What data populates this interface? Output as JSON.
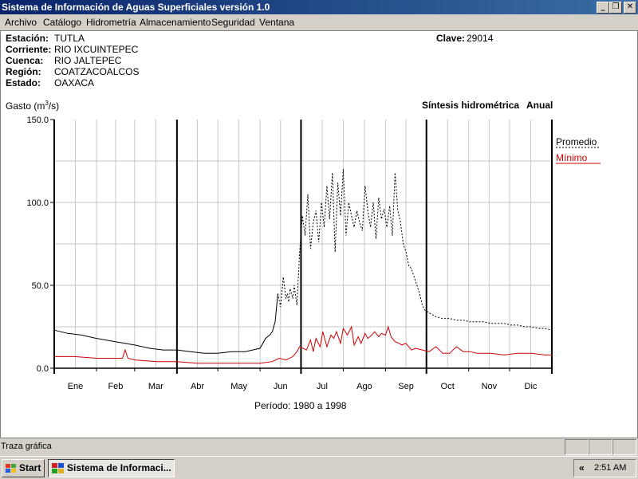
{
  "window": {
    "title": "Sistema de Información de Aguas Superficiales  versión 1.0",
    "minimize_glyph": "_",
    "restore_glyph": "❐",
    "close_glyph": "✕"
  },
  "menu": [
    {
      "label": "Archivo"
    },
    {
      "label": "Catálogo"
    },
    {
      "label": "Hidrometría"
    },
    {
      "label": "Almacenamiento"
    },
    {
      "label": "Seguridad"
    },
    {
      "label": "Ventana"
    }
  ],
  "station": {
    "estacion_label": "Estación:",
    "estacion": "TUTLA",
    "corriente_label": "Corriente:",
    "corriente": "RIO IXCUINTEPEC",
    "cuenca_label": "Cuenca:",
    "cuenca": "RIO JALTEPEC",
    "region_label": "Región:",
    "region": "COATZACOALCOS",
    "estado_label": "Estado:",
    "estado": "OAXACA",
    "clave_label": "Clave:",
    "clave": "29014"
  },
  "chart_header": {
    "ylabel_prefix": "Gasto (m",
    "ylabel_sup": "3",
    "ylabel_suffix": "/s)",
    "synthesis": "Síntesis hidrométrica",
    "period_kind": "Anual",
    "period_text": "Período:  1980 a 1998"
  },
  "chart_data": {
    "type": "line",
    "ylim": [
      0,
      150
    ],
    "yticks": [
      "0.0",
      "50.0",
      "100.0",
      "150.0"
    ],
    "xlim": [
      0,
      365
    ],
    "months": [
      "Ene",
      "Feb",
      "Mar",
      "Abr",
      "May",
      "Jun",
      "Jul",
      "Ago",
      "Sep",
      "Oct",
      "Nov",
      "Dic"
    ],
    "month_starts": [
      0,
      31,
      59,
      90,
      120,
      151,
      181,
      212,
      243,
      273,
      304,
      334
    ],
    "legend": "right",
    "series": [
      {
        "name": "Promedio",
        "color": "#000000",
        "style": "solid-dashed",
        "x": [
          0,
          10,
          20,
          31,
          45,
          59,
          70,
          80,
          90,
          100,
          110,
          120,
          130,
          140,
          151,
          155,
          158,
          160,
          162,
          164,
          166,
          168,
          170,
          171,
          172,
          173,
          175,
          176,
          178,
          180,
          182,
          184,
          186,
          188,
          190,
          192,
          194,
          196,
          198,
          200,
          202,
          204,
          206,
          208,
          210,
          212,
          214,
          216,
          218,
          220,
          222,
          224,
          226,
          228,
          230,
          232,
          234,
          236,
          238,
          240,
          242,
          244,
          246,
          248,
          250,
          252,
          254,
          256,
          258,
          260,
          262,
          264,
          266,
          268,
          270,
          272,
          274,
          276,
          278,
          280,
          285,
          290,
          295,
          300,
          305,
          310,
          315,
          320,
          325,
          330,
          335,
          340,
          345,
          350,
          355,
          360,
          365
        ],
        "y": [
          23,
          21,
          20,
          18,
          16,
          14,
          12,
          11,
          11,
          10,
          9,
          9,
          10,
          10,
          12,
          18,
          20,
          22,
          28,
          45,
          37,
          55,
          42,
          45,
          40,
          48,
          42,
          50,
          38,
          70,
          92,
          80,
          105,
          72,
          88,
          95,
          76,
          100,
          85,
          110,
          90,
          118,
          70,
          112,
          92,
          120,
          80,
          100,
          92,
          85,
          95,
          88,
          83,
          110,
          95,
          85,
          100,
          78,
          103,
          90,
          96,
          85,
          98,
          80,
          118,
          95,
          88,
          75,
          70,
          62,
          60,
          55,
          50,
          45,
          38,
          35,
          34,
          33,
          32,
          31,
          30,
          30,
          29,
          29,
          28,
          28,
          28,
          27,
          27,
          27,
          26,
          26,
          25,
          25,
          24,
          24,
          23
        ]
      },
      {
        "name": "Mínimo",
        "color": "#cc0000",
        "style": "solid",
        "x": [
          0,
          15,
          31,
          45,
          50,
          52,
          54,
          59,
          75,
          90,
          105,
          120,
          135,
          151,
          160,
          165,
          170,
          175,
          178,
          180,
          185,
          188,
          190,
          192,
          195,
          197,
          200,
          203,
          205,
          207,
          210,
          212,
          215,
          218,
          220,
          223,
          225,
          228,
          230,
          233,
          235,
          238,
          240,
          243,
          245,
          247,
          250,
          253,
          255,
          258,
          262,
          265,
          270,
          275,
          280,
          285,
          290,
          295,
          300,
          305,
          310,
          320,
          330,
          340,
          350,
          360,
          365
        ],
        "y": [
          7,
          7,
          6,
          6,
          6,
          11,
          6,
          5,
          4,
          4,
          3,
          3,
          3,
          3,
          4,
          6,
          5,
          7,
          10,
          13,
          11,
          17,
          10,
          18,
          13,
          22,
          13,
          20,
          18,
          22,
          15,
          24,
          20,
          25,
          14,
          19,
          15,
          21,
          18,
          20,
          22,
          19,
          21,
          20,
          25,
          19,
          16,
          15,
          14,
          15,
          11,
          12,
          11,
          10,
          13,
          9,
          9,
          13,
          10,
          10,
          9,
          9,
          8,
          9,
          9,
          8,
          8
        ]
      }
    ]
  },
  "status": {
    "text": "Traza gráfica"
  },
  "taskbar": {
    "start": "Start",
    "app": "Sistema de Informaci...",
    "chevron": "«",
    "clock": "2:51 AM"
  }
}
